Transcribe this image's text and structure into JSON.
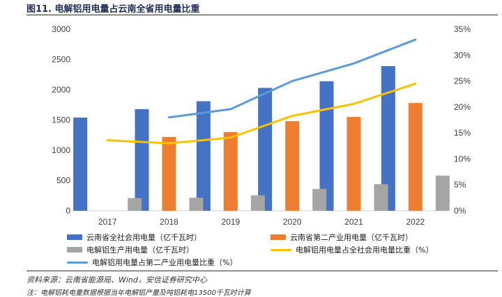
{
  "figure": {
    "title": "图11. 电解铝用电量占云南全省用电量比重",
    "source": "资料来源：云南省能源局、Wind，安信证券研究中心",
    "note": "注：电解铝耗电量数据根据当年电解铝产量及吨铝耗电13500千瓦时计算"
  },
  "colors": {
    "total": "#4472c4",
    "secondary": "#ed7d31",
    "aluminum": "#a5a5a5",
    "share_total": "#ffc000",
    "share_secondary": "#5b9bd5"
  },
  "chart_data": {
    "type": "bar",
    "categories": [
      "2017",
      "2018",
      "2019",
      "2020",
      "2021",
      "2022"
    ],
    "series": [
      {
        "name": "云南省全社会用电量（亿千瓦时）",
        "kind": "bar",
        "axis": "left",
        "values": [
          1540,
          1680,
          1810,
          2030,
          2140,
          2390
        ]
      },
      {
        "name": "云南省第二产业用电量（亿千瓦时）",
        "kind": "bar",
        "axis": "left",
        "values": [
          null,
          1220,
          1300,
          1480,
          1550,
          1780
        ]
      },
      {
        "name": "电解铝生产用电量（亿千瓦时）",
        "kind": "bar",
        "axis": "left",
        "values": [
          210,
          215,
          255,
          360,
          440,
          580
        ]
      },
      {
        "name": "电解铝用电量占全社会用电量比重（%）",
        "kind": "line",
        "axis": "right",
        "values": [
          13.6,
          13.0,
          14.1,
          18.3,
          20.6,
          24.5
        ]
      },
      {
        "name": "电解铝用电量占第二产业用电量比重（%）",
        "kind": "line",
        "axis": "right",
        "values": [
          null,
          18.0,
          19.6,
          25.0,
          28.4,
          33.0
        ]
      }
    ],
    "y_left": {
      "min": 0,
      "max": 3000,
      "ticks": [
        0,
        500,
        1000,
        1500,
        2000,
        2500,
        3000
      ],
      "labels": [
        "0",
        "500",
        "1000",
        "1500",
        "2000",
        "2500",
        "3000"
      ]
    },
    "y_right": {
      "min": 0,
      "max": 35,
      "ticks": [
        0,
        5,
        10,
        15,
        20,
        25,
        30,
        35
      ],
      "labels": [
        "0%",
        "5%",
        "10%",
        "15%",
        "20%",
        "25%",
        "30%",
        "35%"
      ]
    },
    "legend_position": "bottom"
  }
}
